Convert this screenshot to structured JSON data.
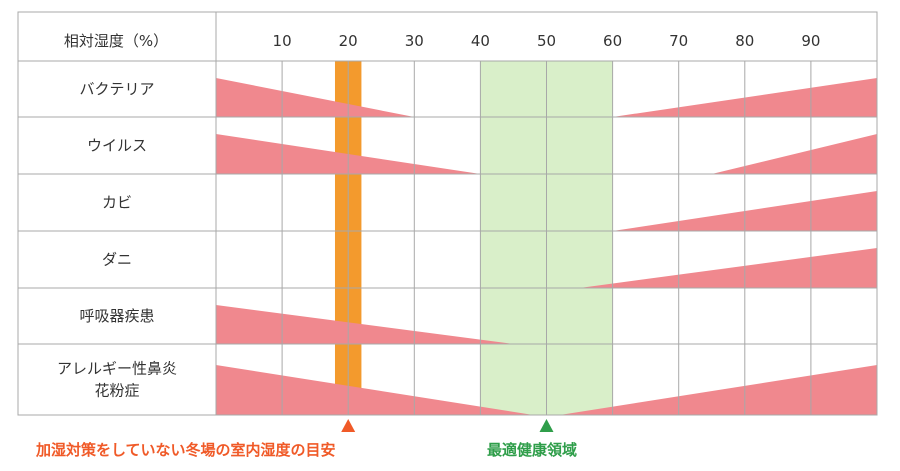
{
  "chart_data": {
    "type": "table",
    "header_label": "相対湿度（%）",
    "x_range": [
      0,
      100
    ],
    "x_ticks": [
      10,
      20,
      30,
      40,
      50,
      60,
      70,
      80,
      90
    ],
    "rows": [
      {
        "label": [
          "バクテリア"
        ],
        "ranges": [
          {
            "from": 0,
            "to": 30,
            "direction": "decreasing"
          },
          {
            "from": 60,
            "to": 100,
            "direction": "increasing"
          }
        ]
      },
      {
        "label": [
          "ウイルス"
        ],
        "ranges": [
          {
            "from": 0,
            "to": 40,
            "direction": "decreasing"
          },
          {
            "from": 75,
            "to": 100,
            "direction": "increasing"
          }
        ]
      },
      {
        "label": [
          "カビ"
        ],
        "ranges": [
          {
            "from": 60,
            "to": 100,
            "direction": "increasing"
          }
        ]
      },
      {
        "label": [
          "ダニ"
        ],
        "ranges": [
          {
            "from": 55,
            "to": 100,
            "direction": "increasing"
          }
        ]
      },
      {
        "label": [
          "呼吸器疾患"
        ],
        "ranges": [
          {
            "from": 0,
            "to": 45,
            "direction": "decreasing"
          }
        ]
      },
      {
        "label": [
          "アレルギー性鼻炎",
          "花粉症"
        ],
        "ranges": [
          {
            "from": 0,
            "to": 48,
            "direction": "decreasing"
          },
          {
            "from": 52,
            "to": 100,
            "direction": "increasing"
          }
        ]
      }
    ],
    "highlights": [
      {
        "name": "加湿対策をしていない冬場の室内湿度の目安",
        "from": 18,
        "to": 22,
        "marker_at": 20,
        "color": "#f39a2d",
        "marker_color": "#f05a28",
        "text_color": "#f05a28"
      },
      {
        "name": "最適健康領域",
        "from": 40,
        "to": 60,
        "marker_at": 50,
        "color": "#d9efc9",
        "marker_color": "#2f9e4a",
        "text_color": "#2f9e4a"
      }
    ],
    "wedge_color": "#f0888e"
  }
}
